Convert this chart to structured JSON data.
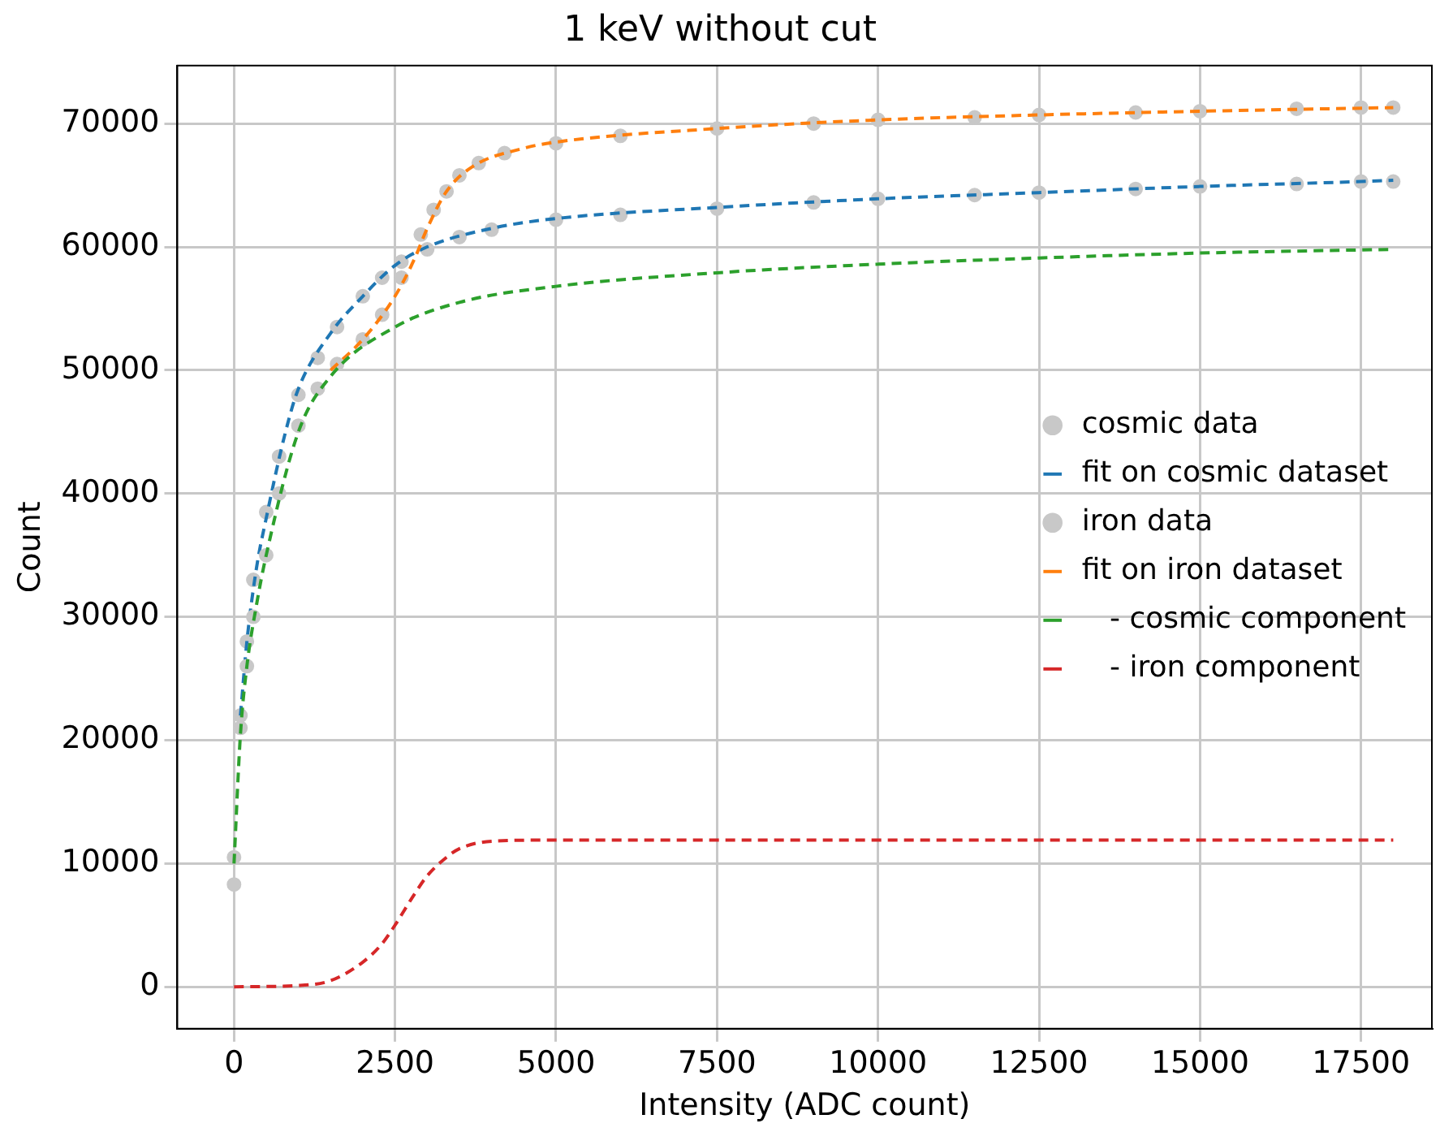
{
  "chart_data": {
    "type": "line",
    "title": "1 keV without cut",
    "xlabel": "Intensity (ADC count)",
    "ylabel": "Count",
    "xlim": [
      -880,
      18600
    ],
    "xticks": [
      0,
      2500,
      5000,
      7500,
      10000,
      12500,
      15000,
      17500
    ],
    "ylim": [
      -3400,
      74700
    ],
    "yticks": [
      0,
      10000,
      20000,
      30000,
      40000,
      50000,
      60000,
      70000
    ],
    "grid": true,
    "legend": "right",
    "series": [
      {
        "name": "cosmic data",
        "type": "scatter",
        "marker": "circle",
        "color": "#c8c8c8",
        "x": [
          0,
          100,
          200,
          300,
          500,
          700,
          1000,
          1300,
          1600,
          2000,
          2300,
          2600,
          3000,
          3500,
          4000,
          5000,
          6000,
          7500,
          9000,
          10000,
          11500,
          12500,
          14000,
          15000,
          16500,
          17500,
          18000
        ],
        "values": [
          8300,
          22000,
          28000,
          33000,
          38500,
          43000,
          48000,
          51000,
          53500,
          56000,
          57500,
          58800,
          59800,
          60800,
          61400,
          62200,
          62600,
          63100,
          63600,
          63900,
          64200,
          64400,
          64700,
          64900,
          65100,
          65300,
          65300
        ]
      },
      {
        "name": "fit on cosmic dataset",
        "type": "line",
        "line_style": "dashed",
        "color": "#1f77b4",
        "x": [
          100,
          200,
          350,
          500,
          800,
          1000,
          1500,
          2000,
          2500,
          3000,
          4000,
          5000,
          7500,
          10000,
          12500,
          15000,
          17500,
          18000
        ],
        "values": [
          22000,
          28000,
          34000,
          38000,
          45000,
          48500,
          53000,
          56000,
          58500,
          60000,
          61500,
          62300,
          63200,
          63900,
          64400,
          64900,
          65300,
          65400
        ]
      },
      {
        "name": "iron data",
        "type": "scatter",
        "marker": "circle",
        "color": "#c8c8c8",
        "x": [
          0,
          100,
          200,
          300,
          500,
          700,
          1000,
          1300,
          1600,
          2000,
          2300,
          2600,
          2900,
          3100,
          3300,
          3500,
          3800,
          4200,
          5000,
          6000,
          7500,
          9000,
          10000,
          11500,
          12500,
          14000,
          15000,
          16500,
          17500,
          18000
        ],
        "values": [
          10500,
          21000,
          26000,
          30000,
          35000,
          40000,
          45500,
          48500,
          50500,
          52500,
          54500,
          57500,
          61000,
          63000,
          64500,
          65800,
          66800,
          67600,
          68400,
          69000,
          69600,
          70000,
          70300,
          70500,
          70700,
          70900,
          71000,
          71200,
          71300,
          71300
        ]
      },
      {
        "name": "fit on iron dataset",
        "type": "line",
        "line_style": "dashed",
        "color": "#ff7f0e",
        "x": [
          1500,
          2000,
          2500,
          2800,
          3000,
          3300,
          3700,
          4500,
          5000,
          7500,
          10000,
          12500,
          15000,
          18000
        ],
        "values": [
          50000,
          52500,
          56000,
          59000,
          61500,
          64500,
          66500,
          68000,
          68500,
          69600,
          70300,
          70700,
          71000,
          71300
        ]
      },
      {
        "name": "   - cosmic component",
        "type": "line",
        "line_style": "dashed",
        "color": "#2ca02c",
        "x": [
          0,
          100,
          200,
          350,
          500,
          1000,
          1500,
          2500,
          3500,
          5000,
          7500,
          10000,
          12500,
          15000,
          18000
        ],
        "values": [
          10000,
          20500,
          26000,
          31000,
          35000,
          45000,
          49500,
          53500,
          55500,
          56800,
          57900,
          58600,
          59100,
          59500,
          59800
        ]
      },
      {
        "name": "   - iron component",
        "type": "line",
        "line_style": "dashed",
        "color": "#d62728",
        "x": [
          0,
          1000,
          1500,
          2000,
          2300,
          2500,
          2800,
          3000,
          3300,
          3500,
          4000,
          5000,
          18000
        ],
        "values": [
          0,
          100,
          500,
          2000,
          3500,
          5000,
          7500,
          9000,
          10500,
          11200,
          11800,
          11900,
          11900
        ]
      }
    ]
  }
}
